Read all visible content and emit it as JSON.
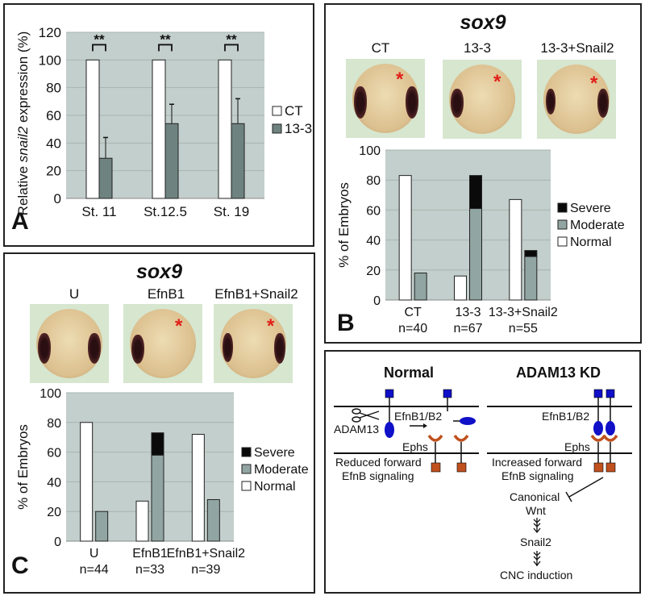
{
  "colors": {
    "plot_bg": "#c3cfcc",
    "grid": "#a7b4b1",
    "ct_bar": "#ffffff",
    "kd_bar": "#6e8380",
    "normal": "#ffffff",
    "moderate": "#91a5a2",
    "severe": "#0a0a0a",
    "asterisk": "#e0201a",
    "ephrin_blue": "#1010c8",
    "eph_orange": "#c0501e"
  },
  "panelA": {
    "letter": "A",
    "legend": [
      "CT",
      "13-3"
    ],
    "significance": "**"
  },
  "panelB": {
    "letter": "B",
    "gene": "sox9",
    "conditions": [
      "CT",
      "13-3",
      "13-3+Snail2"
    ],
    "n_labels": [
      "n=40",
      "n=67",
      "n=55"
    ],
    "legend": [
      "Severe",
      "Moderate",
      "Normal"
    ]
  },
  "panelC": {
    "letter": "C",
    "gene": "sox9",
    "conditions": [
      "U",
      "EfnB1",
      "EfnB1+Snail2"
    ],
    "n_labels": [
      "n=44",
      "n=33",
      "n=39"
    ],
    "legend": [
      "Severe",
      "Moderate",
      "Normal"
    ]
  },
  "panelD": {
    "normal_title": "Normal",
    "kd_title": "ADAM13 KD",
    "adam13": "ADAM13",
    "efnb_left": "EfnB1/B2",
    "efnb_right": "EfnB1/B2",
    "ephs_left": "Ephs",
    "ephs_right": "Ephs",
    "reduced_1": "Reduced forward",
    "reduced_2": "EfnB signaling",
    "increased_1": "Increased forward",
    "increased_2": "EfnB signaling",
    "canonical": "Canonical",
    "wnt": "Wnt",
    "snail2": "Snail2",
    "cnc": "CNC induction"
  },
  "chart_data": [
    {
      "type": "bar",
      "panel": "A",
      "title": "",
      "xlabel": "",
      "ylabel": "Relative snail2 expression (%)",
      "ylabel_parts": [
        "Relative ",
        "snail2",
        " expression (%)"
      ],
      "ylim": [
        0,
        120
      ],
      "yticks": [
        0,
        20,
        40,
        60,
        80,
        100,
        120
      ],
      "categories": [
        "St. 11",
        "St.12.5",
        "St. 19"
      ],
      "series": [
        {
          "name": "CT",
          "values": [
            100,
            100,
            100
          ]
        },
        {
          "name": "13-3",
          "values": [
            29,
            54,
            54
          ],
          "error": [
            15,
            14,
            18
          ]
        }
      ],
      "annotations": [
        "**",
        "**",
        "**"
      ],
      "grid": true,
      "legend": "right"
    },
    {
      "type": "bar",
      "panel": "B",
      "title": "",
      "xlabel": "",
      "ylabel": "% of Embryos",
      "ylim": [
        0,
        100
      ],
      "yticks": [
        0,
        20,
        40,
        60,
        80,
        100
      ],
      "categories": [
        "CT",
        "13-3",
        "13-3+Snail2"
      ],
      "sublabels": [
        "n=40",
        "n=67",
        "n=55"
      ],
      "series": [
        {
          "name": "Normal",
          "values": [
            83,
            16,
            67
          ]
        },
        {
          "name": "Moderate",
          "values": [
            18,
            61,
            29
          ],
          "stack": "abnormal"
        },
        {
          "name": "Severe",
          "values": [
            0,
            22,
            4
          ],
          "stack": "abnormal"
        }
      ],
      "grid": true,
      "legend": "right"
    },
    {
      "type": "bar",
      "panel": "C",
      "title": "",
      "xlabel": "",
      "ylabel": "% of Embryos",
      "ylim": [
        0,
        100
      ],
      "yticks": [
        0,
        20,
        40,
        60,
        80,
        100
      ],
      "categories": [
        "U",
        "EfnB1",
        "EfnB1+Snail2"
      ],
      "sublabels": [
        "n=44",
        "n=33",
        "n=39"
      ],
      "series": [
        {
          "name": "Normal",
          "values": [
            80,
            27,
            72
          ]
        },
        {
          "name": "Moderate",
          "values": [
            20,
            58,
            28
          ],
          "stack": "abnormal"
        },
        {
          "name": "Severe",
          "values": [
            0,
            15,
            0
          ],
          "stack": "abnormal"
        }
      ],
      "grid": true,
      "legend": "right"
    }
  ]
}
